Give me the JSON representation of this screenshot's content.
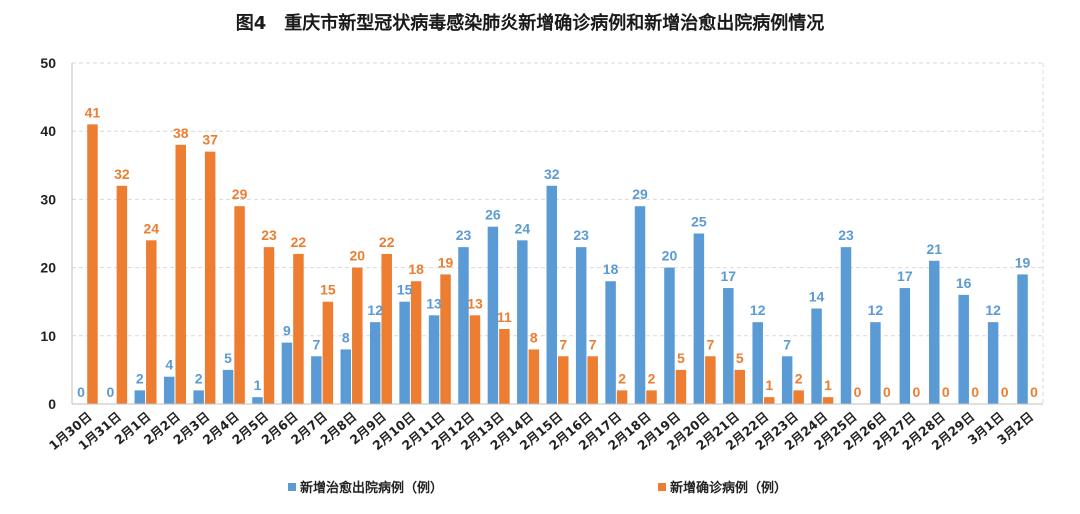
{
  "chart_data": {
    "type": "bar",
    "title": "图4　重庆市新型冠状病毒感染肺炎新增确诊病例和新增治愈出院病例情况",
    "categories": [
      "1月30日",
      "1月31日",
      "2月1日",
      "2月2日",
      "2月3日",
      "2月4日",
      "2月5日",
      "2月6日",
      "2月7日",
      "2月8日",
      "2月9日",
      "2月10日",
      "2月11日",
      "2月12日",
      "2月13日",
      "2月14日",
      "2月15日",
      "2月16日",
      "2月17日",
      "2月18日",
      "2月19日",
      "2月20日",
      "2月21日",
      "2月22日",
      "2月23日",
      "2月24日",
      "2月25日",
      "2月26日",
      "2月27日",
      "2月28日",
      "2月29日",
      "3月1日",
      "3月2日"
    ],
    "series": [
      {
        "name": "新增治愈出院病例（例）",
        "color": "#5b9bd5",
        "values": [
          0,
          0,
          2,
          4,
          2,
          5,
          1,
          9,
          7,
          8,
          12,
          15,
          13,
          23,
          26,
          24,
          32,
          23,
          18,
          29,
          20,
          25,
          17,
          12,
          7,
          14,
          23,
          12,
          17,
          21,
          16,
          12,
          19
        ]
      },
      {
        "name": "新增确诊病例（例）",
        "color": "#ed7d31",
        "values": [
          41,
          32,
          24,
          38,
          37,
          29,
          23,
          22,
          15,
          20,
          22,
          18,
          19,
          13,
          11,
          8,
          7,
          7,
          2,
          2,
          5,
          7,
          5,
          1,
          2,
          1,
          0,
          0,
          0,
          0,
          0,
          0,
          0
        ]
      }
    ],
    "ylim": [
      0,
      50
    ],
    "yticks": [
      0,
      10,
      20,
      30,
      40,
      50
    ],
    "grid": true,
    "legend_position": "bottom",
    "data_labels": true
  }
}
